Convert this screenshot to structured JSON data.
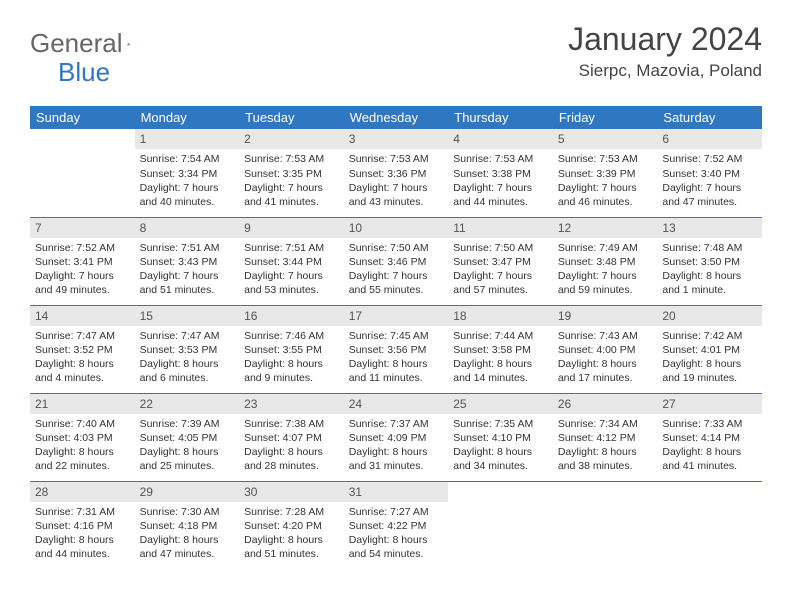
{
  "logo": {
    "text1": "General",
    "text2": "Blue"
  },
  "title": "January 2024",
  "location": "Sierpc, Mazovia, Poland",
  "colors": {
    "header_bg": "#2f78c1",
    "header_text": "#ffffff",
    "daynum_bg": "#e8e8e8",
    "rule": "#2f78c1",
    "text": "#333333"
  },
  "weekdays": [
    "Sunday",
    "Monday",
    "Tuesday",
    "Wednesday",
    "Thursday",
    "Friday",
    "Saturday"
  ],
  "weeks": [
    [
      {
        "n": "",
        "sr": "",
        "ss": "",
        "d1": "",
        "d2": ""
      },
      {
        "n": "1",
        "sr": "Sunrise: 7:54 AM",
        "ss": "Sunset: 3:34 PM",
        "d1": "Daylight: 7 hours",
        "d2": "and 40 minutes."
      },
      {
        "n": "2",
        "sr": "Sunrise: 7:53 AM",
        "ss": "Sunset: 3:35 PM",
        "d1": "Daylight: 7 hours",
        "d2": "and 41 minutes."
      },
      {
        "n": "3",
        "sr": "Sunrise: 7:53 AM",
        "ss": "Sunset: 3:36 PM",
        "d1": "Daylight: 7 hours",
        "d2": "and 43 minutes."
      },
      {
        "n": "4",
        "sr": "Sunrise: 7:53 AM",
        "ss": "Sunset: 3:38 PM",
        "d1": "Daylight: 7 hours",
        "d2": "and 44 minutes."
      },
      {
        "n": "5",
        "sr": "Sunrise: 7:53 AM",
        "ss": "Sunset: 3:39 PM",
        "d1": "Daylight: 7 hours",
        "d2": "and 46 minutes."
      },
      {
        "n": "6",
        "sr": "Sunrise: 7:52 AM",
        "ss": "Sunset: 3:40 PM",
        "d1": "Daylight: 7 hours",
        "d2": "and 47 minutes."
      }
    ],
    [
      {
        "n": "7",
        "sr": "Sunrise: 7:52 AM",
        "ss": "Sunset: 3:41 PM",
        "d1": "Daylight: 7 hours",
        "d2": "and 49 minutes."
      },
      {
        "n": "8",
        "sr": "Sunrise: 7:51 AM",
        "ss": "Sunset: 3:43 PM",
        "d1": "Daylight: 7 hours",
        "d2": "and 51 minutes."
      },
      {
        "n": "9",
        "sr": "Sunrise: 7:51 AM",
        "ss": "Sunset: 3:44 PM",
        "d1": "Daylight: 7 hours",
        "d2": "and 53 minutes."
      },
      {
        "n": "10",
        "sr": "Sunrise: 7:50 AM",
        "ss": "Sunset: 3:46 PM",
        "d1": "Daylight: 7 hours",
        "d2": "and 55 minutes."
      },
      {
        "n": "11",
        "sr": "Sunrise: 7:50 AM",
        "ss": "Sunset: 3:47 PM",
        "d1": "Daylight: 7 hours",
        "d2": "and 57 minutes."
      },
      {
        "n": "12",
        "sr": "Sunrise: 7:49 AM",
        "ss": "Sunset: 3:48 PM",
        "d1": "Daylight: 7 hours",
        "d2": "and 59 minutes."
      },
      {
        "n": "13",
        "sr": "Sunrise: 7:48 AM",
        "ss": "Sunset: 3:50 PM",
        "d1": "Daylight: 8 hours",
        "d2": "and 1 minute."
      }
    ],
    [
      {
        "n": "14",
        "sr": "Sunrise: 7:47 AM",
        "ss": "Sunset: 3:52 PM",
        "d1": "Daylight: 8 hours",
        "d2": "and 4 minutes."
      },
      {
        "n": "15",
        "sr": "Sunrise: 7:47 AM",
        "ss": "Sunset: 3:53 PM",
        "d1": "Daylight: 8 hours",
        "d2": "and 6 minutes."
      },
      {
        "n": "16",
        "sr": "Sunrise: 7:46 AM",
        "ss": "Sunset: 3:55 PM",
        "d1": "Daylight: 8 hours",
        "d2": "and 9 minutes."
      },
      {
        "n": "17",
        "sr": "Sunrise: 7:45 AM",
        "ss": "Sunset: 3:56 PM",
        "d1": "Daylight: 8 hours",
        "d2": "and 11 minutes."
      },
      {
        "n": "18",
        "sr": "Sunrise: 7:44 AM",
        "ss": "Sunset: 3:58 PM",
        "d1": "Daylight: 8 hours",
        "d2": "and 14 minutes."
      },
      {
        "n": "19",
        "sr": "Sunrise: 7:43 AM",
        "ss": "Sunset: 4:00 PM",
        "d1": "Daylight: 8 hours",
        "d2": "and 17 minutes."
      },
      {
        "n": "20",
        "sr": "Sunrise: 7:42 AM",
        "ss": "Sunset: 4:01 PM",
        "d1": "Daylight: 8 hours",
        "d2": "and 19 minutes."
      }
    ],
    [
      {
        "n": "21",
        "sr": "Sunrise: 7:40 AM",
        "ss": "Sunset: 4:03 PM",
        "d1": "Daylight: 8 hours",
        "d2": "and 22 minutes."
      },
      {
        "n": "22",
        "sr": "Sunrise: 7:39 AM",
        "ss": "Sunset: 4:05 PM",
        "d1": "Daylight: 8 hours",
        "d2": "and 25 minutes."
      },
      {
        "n": "23",
        "sr": "Sunrise: 7:38 AM",
        "ss": "Sunset: 4:07 PM",
        "d1": "Daylight: 8 hours",
        "d2": "and 28 minutes."
      },
      {
        "n": "24",
        "sr": "Sunrise: 7:37 AM",
        "ss": "Sunset: 4:09 PM",
        "d1": "Daylight: 8 hours",
        "d2": "and 31 minutes."
      },
      {
        "n": "25",
        "sr": "Sunrise: 7:35 AM",
        "ss": "Sunset: 4:10 PM",
        "d1": "Daylight: 8 hours",
        "d2": "and 34 minutes."
      },
      {
        "n": "26",
        "sr": "Sunrise: 7:34 AM",
        "ss": "Sunset: 4:12 PM",
        "d1": "Daylight: 8 hours",
        "d2": "and 38 minutes."
      },
      {
        "n": "27",
        "sr": "Sunrise: 7:33 AM",
        "ss": "Sunset: 4:14 PM",
        "d1": "Daylight: 8 hours",
        "d2": "and 41 minutes."
      }
    ],
    [
      {
        "n": "28",
        "sr": "Sunrise: 7:31 AM",
        "ss": "Sunset: 4:16 PM",
        "d1": "Daylight: 8 hours",
        "d2": "and 44 minutes."
      },
      {
        "n": "29",
        "sr": "Sunrise: 7:30 AM",
        "ss": "Sunset: 4:18 PM",
        "d1": "Daylight: 8 hours",
        "d2": "and 47 minutes."
      },
      {
        "n": "30",
        "sr": "Sunrise: 7:28 AM",
        "ss": "Sunset: 4:20 PM",
        "d1": "Daylight: 8 hours",
        "d2": "and 51 minutes."
      },
      {
        "n": "31",
        "sr": "Sunrise: 7:27 AM",
        "ss": "Sunset: 4:22 PM",
        "d1": "Daylight: 8 hours",
        "d2": "and 54 minutes."
      },
      {
        "n": "",
        "sr": "",
        "ss": "",
        "d1": "",
        "d2": ""
      },
      {
        "n": "",
        "sr": "",
        "ss": "",
        "d1": "",
        "d2": ""
      },
      {
        "n": "",
        "sr": "",
        "ss": "",
        "d1": "",
        "d2": ""
      }
    ]
  ]
}
